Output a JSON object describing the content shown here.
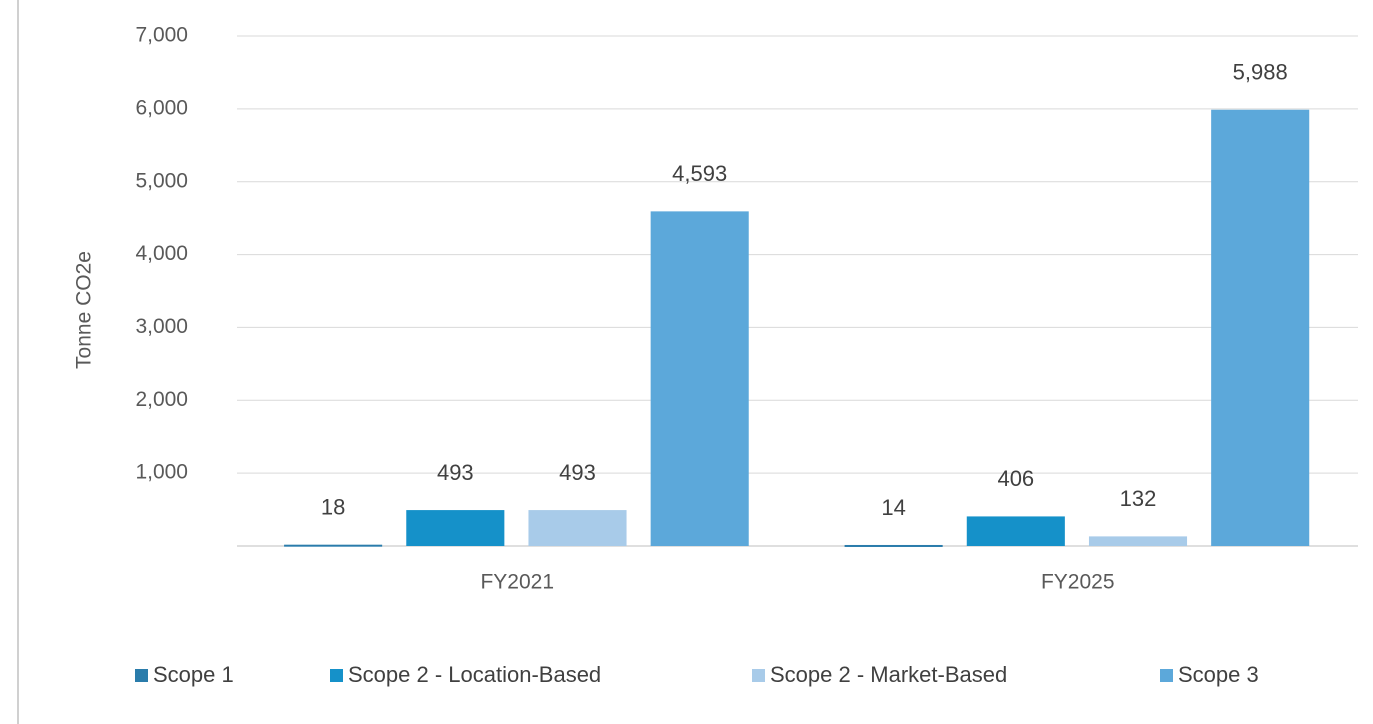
{
  "chart_data": {
    "type": "bar",
    "y_label": "Tonne CO2e",
    "categories": [
      "FY2021",
      "FY2025"
    ],
    "series": [
      {
        "name": "Scope 1",
        "color": "#2a7cab",
        "values": [
          18,
          14
        ],
        "value_labels": [
          "18",
          "14"
        ]
      },
      {
        "name": "Scope 2 - Location-Based",
        "color": "#1591c9",
        "values": [
          493,
          406
        ],
        "value_labels": [
          "493",
          "406"
        ]
      },
      {
        "name": "Scope 2 - Market-Based",
        "color": "#a8cbe9",
        "values": [
          493,
          132
        ],
        "value_labels": [
          "493",
          "132"
        ]
      },
      {
        "name": "Scope 3",
        "color": "#5ca8da",
        "values": [
          4593,
          5988
        ],
        "value_labels": [
          "4,593",
          "5,988"
        ]
      }
    ],
    "ylim": [
      0,
      7000
    ],
    "yticks": [
      {
        "value": 1000,
        "label": "1,000"
      },
      {
        "value": 2000,
        "label": "2,000"
      },
      {
        "value": 3000,
        "label": "3,000"
      },
      {
        "value": 4000,
        "label": "4,000"
      },
      {
        "value": 5000,
        "label": "5,000"
      },
      {
        "value": 6000,
        "label": "6,000"
      },
      {
        "value": 7000,
        "label": "7,000"
      }
    ],
    "grid": true
  }
}
